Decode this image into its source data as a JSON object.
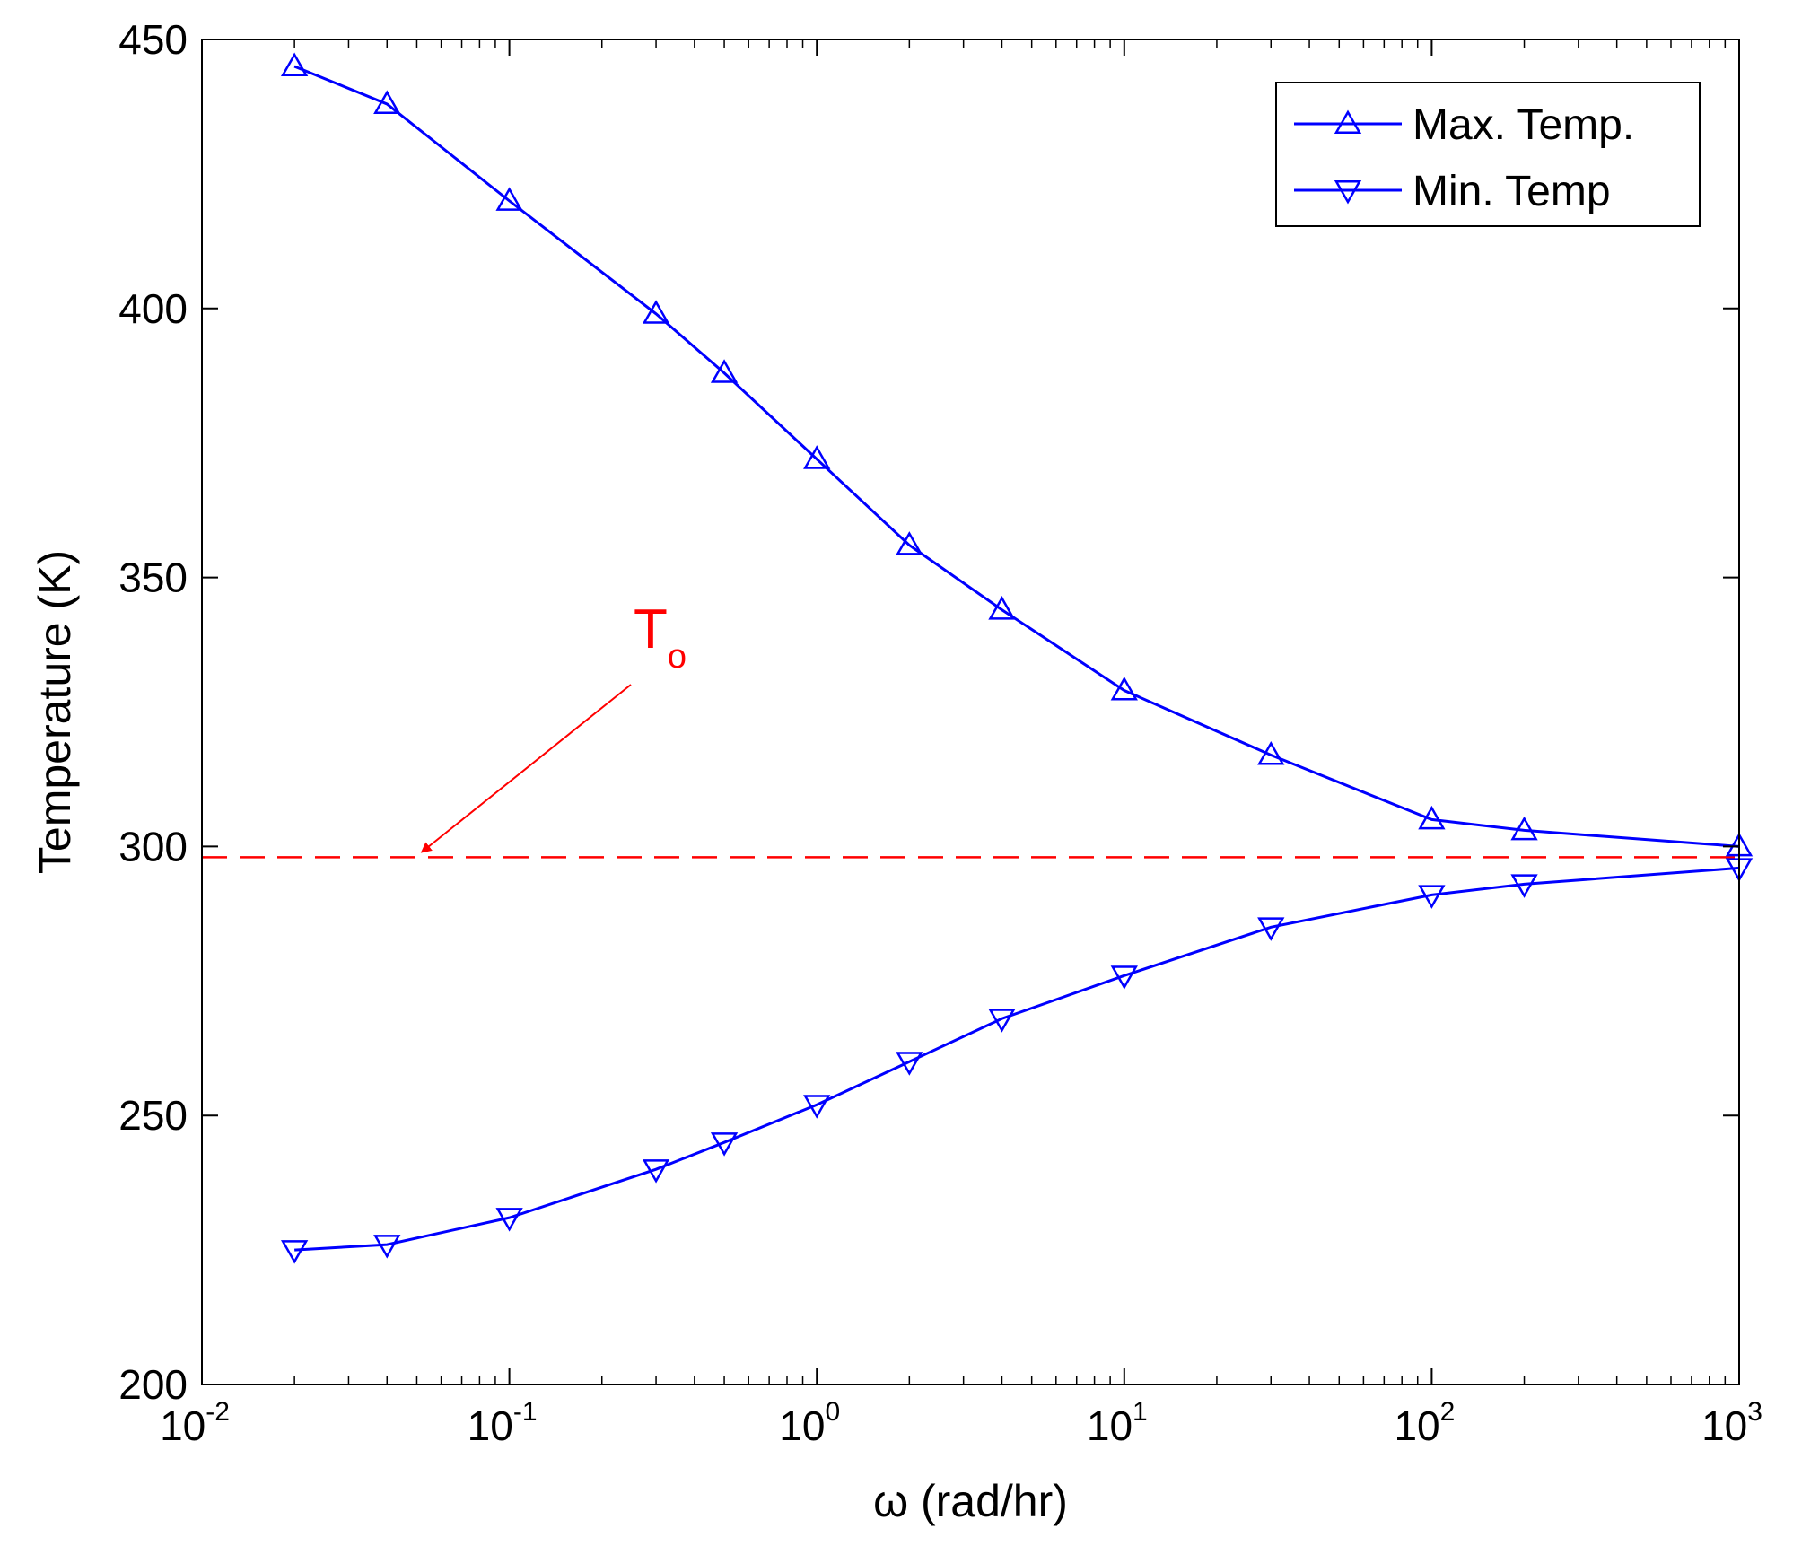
{
  "chart_data": {
    "type": "line",
    "title": "",
    "xlabel": "ω (rad/hr)",
    "ylabel": "Temperature (K)",
    "xscale": "log",
    "xlim": [
      0.01,
      1000
    ],
    "ylim": [
      200,
      450
    ],
    "grid": false,
    "legend_position": "top-right",
    "x_ticks": [
      {
        "base": "10",
        "exp": "-2",
        "value": 0.01
      },
      {
        "base": "10",
        "exp": "-1",
        "value": 0.1
      },
      {
        "base": "10",
        "exp": "0",
        "value": 1
      },
      {
        "base": "10",
        "exp": "1",
        "value": 10
      },
      {
        "base": "10",
        "exp": "2",
        "value": 100
      },
      {
        "base": "10",
        "exp": "3",
        "value": 1000
      }
    ],
    "y_ticks": [
      {
        "label": "200",
        "value": 200
      },
      {
        "label": "250",
        "value": 250
      },
      {
        "label": "300",
        "value": 300
      },
      {
        "label": "350",
        "value": 350
      },
      {
        "label": "400",
        "value": 400
      },
      {
        "label": "450",
        "value": 450
      }
    ],
    "x": [
      0.02,
      0.04,
      0.1,
      0.3,
      0.5,
      1,
      2,
      4,
      10,
      30,
      100,
      200,
      1000
    ],
    "series": [
      {
        "name": "Max. Temp.",
        "marker": "triangle-up",
        "color": "#0000ff",
        "values": [
          445,
          438,
          420,
          399,
          388,
          372,
          356,
          344,
          329,
          317,
          305,
          303,
          300
        ]
      },
      {
        "name": "Min. Temp",
        "marker": "triangle-down",
        "color": "#0000ff",
        "values": [
          225,
          226,
          231,
          240,
          245,
          252,
          260,
          268,
          276,
          285,
          291,
          293,
          296
        ]
      }
    ],
    "reference_line": {
      "value": 298,
      "style": "dashed",
      "color": "#ff0000"
    },
    "annotation": {
      "text": "T",
      "subscript": "o",
      "color": "#ff0000",
      "arrow_target_x": 0.052,
      "arrow_target_y": 298
    }
  }
}
